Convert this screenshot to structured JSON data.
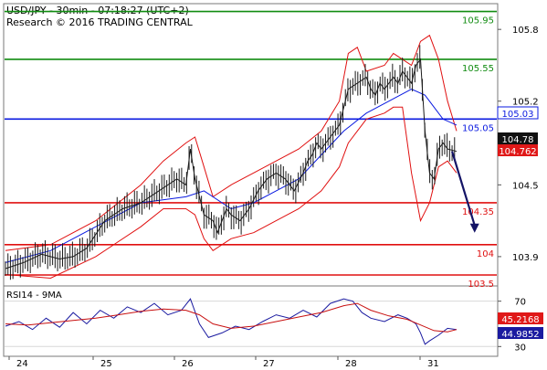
{
  "header": {
    "title": "USD/JPY - 30min - 07:18:27 (UTC+2)",
    "subtitle": "Research © 2016 TRADING CENTRAL"
  },
  "colors": {
    "green": "#118c11",
    "blue": "#0a1ae0",
    "red": "#e01010",
    "dark": "#141466",
    "candle": "#1a1a1a",
    "badge_dark": "#111111",
    "badge_red": "#e01818",
    "rsi_blue": "#1a1aa0",
    "rsi_red": "#c81010",
    "frame": "#7a7a7a"
  },
  "chart_data": [
    {
      "type": "line",
      "panel": "price",
      "title": "USD/JPY - 30min",
      "ylim": [
        103.67,
        106.0
      ],
      "y_ticks": [
        105.8,
        105.2,
        104.5,
        103.9
      ],
      "x_ticks": [
        "24",
        "25",
        "26",
        "27",
        "28",
        "31"
      ],
      "levels": [
        {
          "value": 105.95,
          "label": "105.95",
          "color": "green"
        },
        {
          "value": 105.55,
          "label": "105.55",
          "color": "green"
        },
        {
          "value": 105.05,
          "label": "105.05",
          "color": "blue"
        },
        {
          "value": 104.35,
          "label": "104.35",
          "color": "red"
        },
        {
          "value": 104.0,
          "label": "104",
          "color": "red"
        },
        {
          "value": 103.5,
          "label": "103.5",
          "color": "red"
        }
      ],
      "badges": [
        {
          "value": 104.78,
          "label": "104.78",
          "color": "badge_dark"
        },
        {
          "value": 104.762,
          "label": "104.762",
          "color": "badge_red"
        },
        {
          "value": 105.03,
          "label": "105.03",
          "color": "blue"
        }
      ],
      "price_series": {
        "name": "price",
        "x": [
          0,
          4,
          8,
          12,
          15,
          18,
          22,
          26,
          30,
          34,
          38,
          40,
          41,
          42,
          44,
          46,
          47,
          48,
          49,
          50,
          52,
          54,
          56,
          58,
          60,
          62,
          64,
          66,
          67,
          68,
          69,
          70,
          72,
          74,
          76,
          78,
          80,
          81,
          82,
          83,
          84,
          86,
          87,
          88,
          89,
          90,
          91,
          92,
          93,
          94,
          95,
          96,
          97,
          98,
          100
        ],
        "values": [
          103.8,
          103.85,
          103.92,
          103.88,
          103.9,
          103.97,
          104.2,
          104.3,
          104.35,
          104.45,
          104.55,
          104.5,
          104.8,
          104.55,
          104.25,
          104.2,
          104.1,
          104.2,
          104.3,
          104.25,
          104.2,
          104.3,
          104.45,
          104.55,
          104.6,
          104.55,
          104.45,
          104.6,
          104.7,
          104.75,
          104.85,
          104.8,
          104.9,
          105.0,
          105.3,
          105.35,
          105.4,
          105.3,
          105.25,
          105.35,
          105.3,
          105.4,
          105.35,
          105.45,
          105.4,
          105.35,
          105.5,
          105.55,
          104.95,
          104.6,
          104.55,
          104.8,
          104.85,
          104.8,
          104.78
        ]
      },
      "bollinger_series": [
        {
          "name": "upper",
          "x": [
            0,
            10,
            20,
            30,
            35,
            40,
            42,
            44,
            46,
            50,
            55,
            60,
            65,
            70,
            74,
            76,
            78,
            80,
            84,
            86,
            88,
            90,
            92,
            94,
            96,
            98,
            100
          ],
          "values": [
            103.95,
            104.0,
            104.2,
            104.5,
            104.7,
            104.85,
            104.9,
            104.65,
            104.4,
            104.5,
            104.6,
            104.7,
            104.8,
            104.95,
            105.2,
            105.6,
            105.65,
            105.45,
            105.5,
            105.6,
            105.55,
            105.5,
            105.7,
            105.75,
            105.55,
            105.2,
            104.95
          ]
        },
        {
          "name": "lower",
          "x": [
            0,
            10,
            20,
            30,
            35,
            40,
            42,
            44,
            46,
            50,
            55,
            60,
            65,
            70,
            74,
            76,
            78,
            80,
            84,
            86,
            88,
            90,
            92,
            94,
            96,
            98,
            100
          ],
          "values": [
            103.75,
            103.72,
            103.9,
            104.15,
            104.3,
            104.3,
            104.25,
            104.05,
            103.95,
            104.05,
            104.1,
            104.2,
            104.3,
            104.45,
            104.65,
            104.85,
            104.95,
            105.05,
            105.1,
            105.15,
            105.15,
            104.6,
            104.2,
            104.35,
            104.65,
            104.7,
            104.6
          ]
        }
      ],
      "ma_series": {
        "name": "MA",
        "x": [
          0,
          10,
          20,
          30,
          40,
          44,
          50,
          55,
          60,
          65,
          70,
          75,
          80,
          85,
          90,
          93,
          95,
          97,
          100
        ],
        "values": [
          103.85,
          103.95,
          104.15,
          104.35,
          104.4,
          104.45,
          104.3,
          104.35,
          104.45,
          104.55,
          104.75,
          104.95,
          105.1,
          105.2,
          105.3,
          105.25,
          105.15,
          105.05,
          105.0
        ]
      },
      "arrow": {
        "from_x": 99,
        "from_y": 104.78,
        "to_x": 104,
        "to_y": 104.1
      }
    },
    {
      "type": "line",
      "panel": "rsi",
      "title": "RSI14 - 9MA",
      "ylim": [
        23,
        81
      ],
      "y_ticks": [
        70,
        30
      ],
      "x_ticks": [
        "24",
        "25",
        "26",
        "27",
        "28",
        "31"
      ],
      "badges": [
        {
          "value": 45.2168,
          "label": "45.2168",
          "color": "badge_red"
        },
        {
          "value": 44.9852,
          "label": "44.9852",
          "color": "rsi_blue"
        }
      ],
      "series": [
        {
          "name": "RSI14",
          "x": [
            0,
            3,
            6,
            9,
            12,
            15,
            18,
            21,
            24,
            27,
            30,
            33,
            36,
            39,
            41,
            43,
            45,
            48,
            51,
            54,
            57,
            60,
            63,
            66,
            69,
            72,
            75,
            77,
            79,
            81,
            84,
            87,
            89,
            91,
            92,
            93,
            94,
            96,
            98,
            100
          ],
          "values": [
            48,
            52,
            45,
            55,
            47,
            60,
            50,
            62,
            55,
            65,
            60,
            68,
            58,
            62,
            72,
            50,
            38,
            42,
            48,
            45,
            52,
            58,
            55,
            62,
            56,
            68,
            72,
            70,
            60,
            55,
            52,
            58,
            55,
            50,
            42,
            32,
            35,
            40,
            46,
            45
          ]
        },
        {
          "name": "9MA",
          "x": [
            0,
            5,
            10,
            15,
            20,
            25,
            30,
            35,
            40,
            43,
            46,
            50,
            55,
            60,
            65,
            70,
            75,
            78,
            81,
            85,
            89,
            92,
            95,
            98,
            100
          ],
          "values": [
            50,
            49,
            51,
            53,
            55,
            58,
            61,
            63,
            62,
            58,
            50,
            46,
            48,
            52,
            56,
            60,
            66,
            68,
            62,
            57,
            54,
            49,
            44,
            43,
            45
          ]
        }
      ]
    }
  ]
}
